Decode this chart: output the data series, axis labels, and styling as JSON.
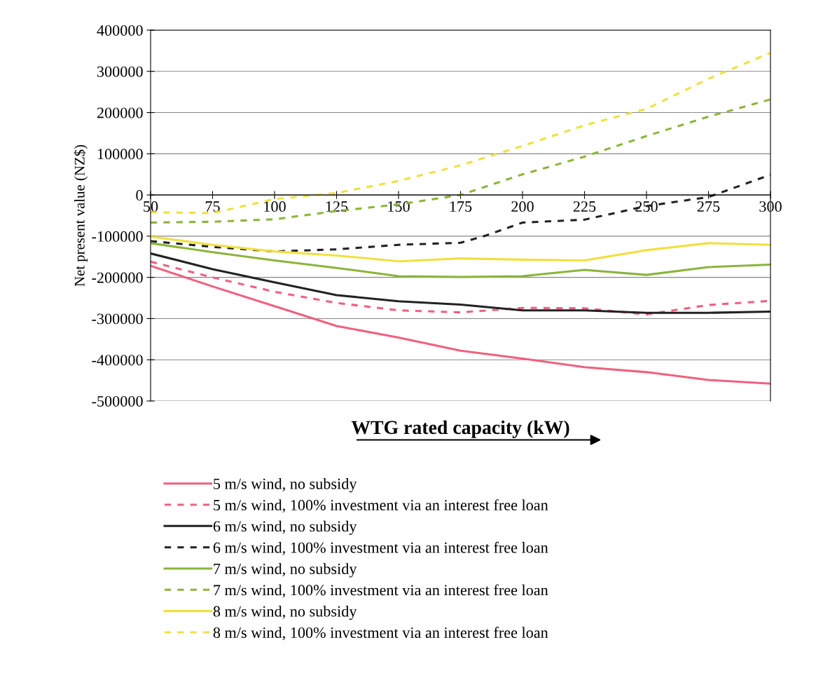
{
  "chart_data": {
    "type": "line",
    "xlabel": "WTG rated capacity (kW)",
    "ylabel": "Net present value (NZ$)",
    "x": [
      50,
      75,
      100,
      125,
      150,
      175,
      200,
      225,
      250,
      275,
      300
    ],
    "series": [
      {
        "name": "5 m/s wind, no subsidy",
        "color": "#f06080",
        "line_style": "solid",
        "values": [
          -172000,
          -222000,
          -270000,
          -318000,
          -346000,
          -378000,
          -397000,
          -418000,
          -430000,
          -449000,
          -458000
        ]
      },
      {
        "name": "5 m/s wind, 100% investment via an interest free loan",
        "color": "#f06080",
        "line_style": "dashed",
        "values": [
          -162000,
          -200000,
          -235000,
          -262000,
          -280000,
          -285000,
          -274000,
          -275000,
          -290000,
          -267000,
          -257000
        ]
      },
      {
        "name": "6 m/s wind, no subsidy",
        "color": "#222222",
        "line_style": "solid",
        "values": [
          -142000,
          -180000,
          -212000,
          -243000,
          -258000,
          -266000,
          -280000,
          -280000,
          -286000,
          -286000,
          -283000
        ]
      },
      {
        "name": "6 m/s wind, 100% investment via an interest free loan",
        "color": "#222222",
        "line_style": "dashed",
        "x": [
          50,
          75,
          100,
          125,
          150,
          175,
          185,
          200,
          225,
          250,
          275,
          300
        ],
        "values": [
          -112000,
          -126000,
          -137000,
          -132000,
          -121000,
          -116000,
          -99000,
          -67000,
          -60000,
          -27000,
          -5000,
          49000
        ]
      },
      {
        "name": "7 m/s wind, no subsidy",
        "color": "#8cb43c",
        "line_style": "solid",
        "values": [
          -117000,
          -139000,
          -159000,
          -177000,
          -197000,
          -199000,
          -197000,
          -182000,
          -194000,
          -175000,
          -169000
        ]
      },
      {
        "name": "7 m/s wind, 100% investment via an interest free loan",
        "color": "#8cb43c",
        "line_style": "dashed",
        "values": [
          -67000,
          -65000,
          -59000,
          -39000,
          -23000,
          0,
          50000,
          93000,
          143000,
          190000,
          232000
        ]
      },
      {
        "name": "8 m/s wind, no subsidy",
        "color": "#f0e040",
        "line_style": "solid",
        "values": [
          -101000,
          -121000,
          -137000,
          -147000,
          -161000,
          -154000,
          -157000,
          -159000,
          -134000,
          -117000,
          -121000
        ]
      },
      {
        "name": "8 m/s wind, 100% investment via an interest free loan",
        "color": "#f0e040",
        "line_style": "dashed",
        "values": [
          -42000,
          -44000,
          -10000,
          5000,
          34000,
          72000,
          119000,
          169000,
          209000,
          282000,
          345000
        ]
      }
    ],
    "xlim": [
      50,
      300
    ],
    "xticks": [
      50,
      75,
      100,
      125,
      150,
      175,
      200,
      225,
      250,
      275,
      300
    ],
    "ylim": [
      -500000,
      400000
    ],
    "yticks": [
      -500000,
      -400000,
      -300000,
      -200000,
      -100000,
      0,
      100000,
      200000,
      300000,
      400000
    ],
    "grid": "y",
    "legend": "bottom",
    "marker": "none"
  }
}
